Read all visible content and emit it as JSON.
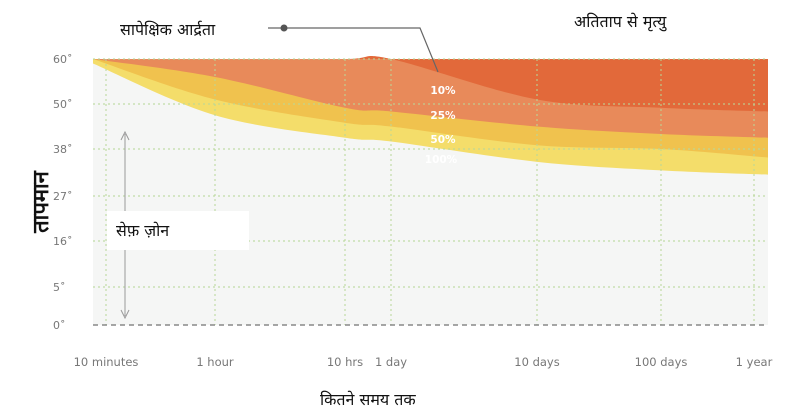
{
  "chart_data": {
    "type": "area",
    "title": "",
    "xlabel": "कितने समय तक",
    "ylabel": "तापमान",
    "x_tick_labels": [
      "10 minutes",
      "1 hour",
      "10 hrs",
      "1 day",
      "10 days",
      "100 days",
      "1 year"
    ],
    "y_tick_labels": [
      "60˚",
      "50˚",
      "38˚",
      "27˚",
      "16˚",
      "5˚",
      "0˚"
    ],
    "series": [
      {
        "name": "10%",
        "color": "#E2693A",
        "values": [
          60,
          60,
          60,
          60,
          51,
          49,
          48
        ]
      },
      {
        "name": "25%",
        "color": "#E88A5A",
        "values": [
          60,
          56,
          49,
          48,
          44,
          42,
          41
        ]
      },
      {
        "name": "50%",
        "color": "#F0C24E",
        "values": [
          60,
          51,
          45,
          44,
          39,
          38,
          36
        ]
      },
      {
        "name": "100%",
        "color": "#F4DD6A",
        "values": [
          59,
          47,
          41,
          40,
          35,
          33,
          32
        ]
      }
    ],
    "annotations": {
      "relative_humidity": "सापेक्षिक आर्द्रता",
      "death_by_heat": "अतिताप से मृत्यु",
      "safe_zone": "सेफ़ ज़ोन"
    },
    "grid": true,
    "colors": {
      "safe_zone_fill": "#F5F6F5",
      "grid": "#B8D89A",
      "baseline": "#888888",
      "tick_text": "#777777"
    }
  }
}
